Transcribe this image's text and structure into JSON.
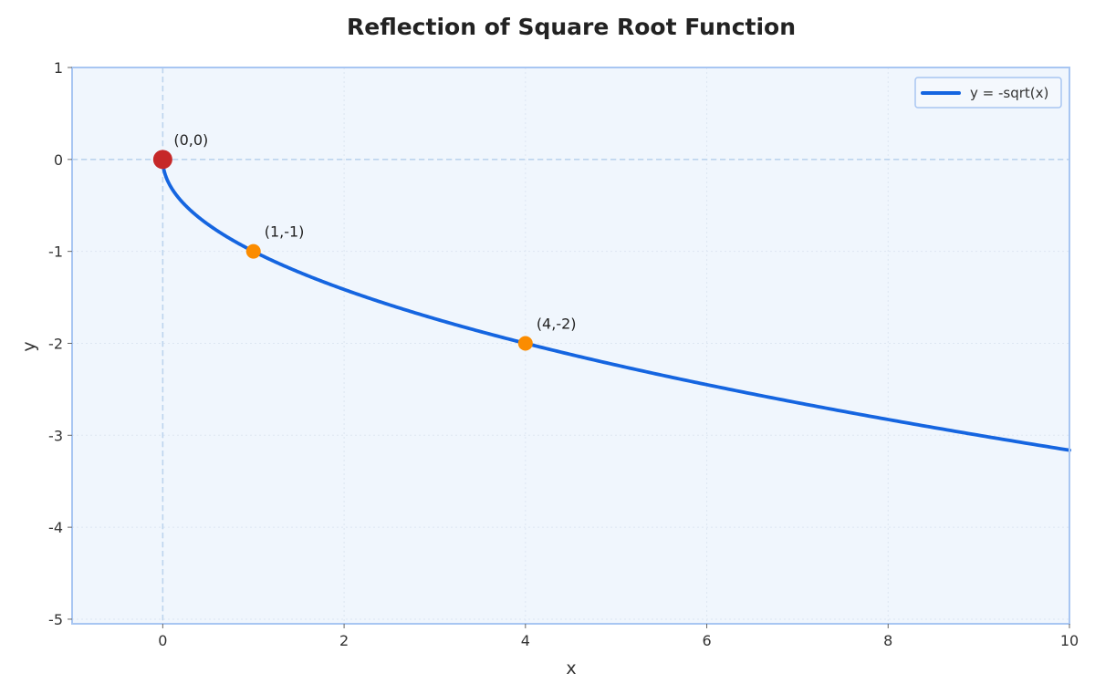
{
  "chart_data": {
    "type": "line",
    "title": "Reflection of Square Root Function",
    "xlabel": "x",
    "ylabel": "y",
    "xlim": [
      -1,
      10
    ],
    "ylim": [
      -5.05,
      1
    ],
    "x_ticks": [
      0,
      2,
      4,
      6,
      8,
      10
    ],
    "y_ticks": [
      1,
      0,
      -1,
      -2,
      -3,
      -4,
      -5
    ],
    "grid": true,
    "legend_position": "top-right",
    "series": [
      {
        "name": "y = -sqrt(x)",
        "function": "-sqrt(x)",
        "domain": [
          0,
          10
        ],
        "color": "#1565e0"
      }
    ],
    "points": [
      {
        "x": 0,
        "y": 0,
        "label": "(0,0)",
        "color": "#c62828"
      },
      {
        "x": 1,
        "y": -1,
        "label": "(1,-1)",
        "color": "#fb8c00"
      },
      {
        "x": 4,
        "y": -2,
        "label": "(4,-2)",
        "color": "#fb8c00"
      }
    ],
    "colors": {
      "plot_background": "#f0f6fd",
      "plot_border": "#a8c6f2",
      "grid": "#dde6f2",
      "zero_lines": "#bcd4ee"
    }
  }
}
